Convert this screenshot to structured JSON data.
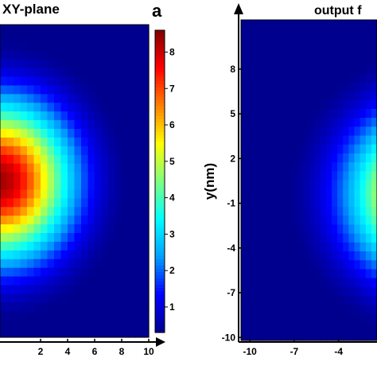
{
  "chart_data": [
    {
      "type": "heatmap",
      "title": "XY-plane",
      "panel_label": "a",
      "x_ticks": [
        2,
        4,
        6,
        8,
        10
      ],
      "xlim": [
        -1,
        10
      ],
      "ylim": [
        -10,
        11
      ],
      "field": {
        "kind": "gaussian",
        "center": [
          -1,
          0.5
        ],
        "peak": 8.3,
        "sigma": 3.6
      },
      "grid": {
        "nx": 22,
        "ny": 36
      },
      "colorbar": {
        "ticks": [
          1,
          2,
          3,
          4,
          5,
          6,
          7,
          8
        ],
        "min": 0.3,
        "max": 8.6
      }
    },
    {
      "type": "heatmap",
      "title": "output f",
      "ylabel": "y(nm)",
      "x_ticks": [
        -10,
        -7,
        -4
      ],
      "y_ticks": [
        8,
        5,
        2,
        -1,
        -4,
        -7,
        -10
      ],
      "xlim": [
        -10.6,
        -1.4
      ],
      "ylim": [
        -10.2,
        11.3
      ],
      "field": {
        "kind": "gaussian",
        "center": [
          2.5,
          -0.4
        ],
        "peak": 8.0,
        "sigma": 3.8
      },
      "grid": {
        "nx": 24,
        "ny": 36
      }
    }
  ],
  "colormap": [
    "#00008f",
    "#0000ff",
    "#00a0ff",
    "#00ffff",
    "#80ff80",
    "#ffff00",
    "#ff8000",
    "#ff0000",
    "#800000"
  ]
}
